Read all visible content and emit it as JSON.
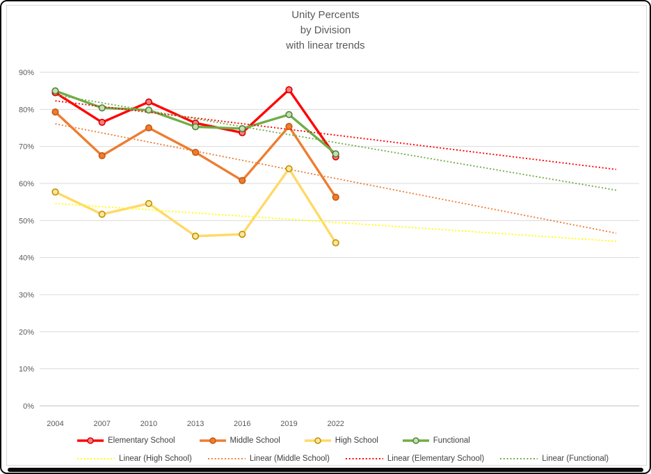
{
  "title": {
    "line1": "Unity Percents",
    "line2": "by Division",
    "line3": "with linear trends",
    "color": "#595959"
  },
  "frame": {
    "background": "#FFFFFF",
    "outer_border_color": "#0B0B0B",
    "chart_border_color": "#D9D9D9",
    "bottom_bar_color": "#0B0B0B"
  },
  "chart_data": {
    "type": "line",
    "title": "Unity Percents by Division with linear trends",
    "grid": "horizontal",
    "gridline_color": "#D9D9D9",
    "axis_line_color": "#BFBFBF",
    "tick_label_color": "#595959",
    "legend_position": "bottom",
    "categories": [
      2004,
      2007,
      2010,
      2013,
      2016,
      2019,
      2022
    ],
    "y_axis": {
      "min": 0,
      "max": 90,
      "step": 10,
      "format": "percent",
      "tick_labels": [
        "90%",
        "80%",
        "70%",
        "60%",
        "50%",
        "40%",
        "30%",
        "20%",
        "10%",
        "0%"
      ]
    },
    "series": [
      {
        "name": "Elementary School",
        "color": "#FF0000",
        "marker_fill": "#FF7C7C",
        "marker_stroke": "#D00000",
        "values": [
          84.5,
          76.5,
          82.0,
          76.3,
          73.7,
          85.3,
          67.2
        ]
      },
      {
        "name": "Middle School",
        "color": "#ED7D31",
        "marker_fill": "#ED7D31",
        "marker_stroke": "#C55A11",
        "values": [
          79.3,
          67.5,
          75.0,
          68.4,
          60.8,
          75.4,
          56.3
        ]
      },
      {
        "name": "High School",
        "color": "#FFD966",
        "marker_fill": "#FFE699",
        "marker_stroke": "#BF9000",
        "values": [
          57.7,
          51.7,
          54.6,
          45.8,
          46.3,
          64.0,
          44.0
        ]
      },
      {
        "name": "Functional",
        "color": "#70AD47",
        "marker_fill": "#C5E0B4",
        "marker_stroke": "#538135",
        "values": [
          85.0,
          80.4,
          79.8,
          75.3,
          74.8,
          78.6,
          68.0
        ]
      }
    ],
    "trendlines": [
      {
        "name": "Linear (High School)",
        "color": "#FFFF00",
        "start_year": 2004,
        "end_year": 2040,
        "start_value": 54.6,
        "end_value": 44.4
      },
      {
        "name": "Linear (Middle School)",
        "color": "#ED7D31",
        "start_year": 2004,
        "end_year": 2040,
        "start_value": 76.1,
        "end_value": 46.6
      },
      {
        "name": "Linear (Elementary School)",
        "color": "#FF0000",
        "start_year": 2004,
        "end_year": 2040,
        "start_value": 82.3,
        "end_value": 63.8
      },
      {
        "name": "Linear (Functional)",
        "color": "#70AD47",
        "start_year": 2004,
        "end_year": 2040,
        "start_value": 83.9,
        "end_value": 58.2
      }
    ]
  },
  "legend": {
    "row1_labels": [
      "Elementary School",
      "Middle School",
      "High School",
      "Functional"
    ],
    "row2_labels": [
      "Linear (High School)",
      "Linear (Middle School)",
      "Linear (Elementary School)",
      "Linear (Functional)"
    ]
  }
}
